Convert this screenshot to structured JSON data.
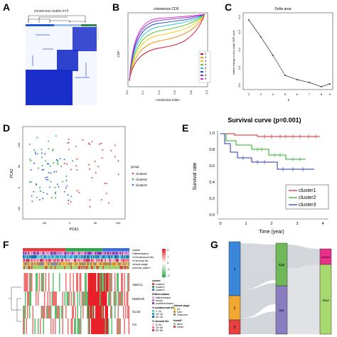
{
  "panels": {
    "A": {
      "label": "A",
      "title": "consensus matrix k=3",
      "legend": [
        "1",
        "2",
        "3"
      ],
      "colors": {
        "cluster1": "#1f5ad8",
        "cluster2": "#9fc3e8",
        "cluster3": "#2c8a55",
        "matrix": "#1a2ec9"
      }
    },
    "B": {
      "label": "B",
      "title": "consensus CDF",
      "xlabel": "consensus index",
      "ylabel": "CDF",
      "xticks": [
        "0.0",
        "0.2",
        "0.4",
        "0.6",
        "0.8",
        "1.0"
      ],
      "yticks": [
        "0.0",
        "0.2",
        "0.4",
        "0.6",
        "0.8",
        "1.0"
      ],
      "legend": [
        "2",
        "3",
        "4",
        "5",
        "6",
        "7",
        "8",
        "9"
      ],
      "colors": [
        "#e0001e",
        "#f08a00",
        "#e8d000",
        "#58c32a",
        "#1ec8c8",
        "#1b3bd8",
        "#7a2ad8",
        "#e02ad0"
      ]
    },
    "C": {
      "label": "C",
      "title": "Delta area",
      "xlabel": "k",
      "ylabel": "relative change in area under CDF curve",
      "xticks": [
        "2",
        "3",
        "4",
        "5",
        "6",
        "7",
        "8",
        "9"
      ],
      "yticks": [
        "0.0",
        "0.1",
        "0.2",
        "0.3",
        "0.4"
      ]
    },
    "D": {
      "label": "D",
      "xlabel": "PCA1",
      "ylabel": "PCA2",
      "xticks": [
        "-50",
        "0",
        "50",
        "100"
      ],
      "yticks": [
        "100",
        "50",
        "0",
        "-50"
      ],
      "legend_title": "group",
      "legend": [
        "cluster1",
        "cluster2",
        "cluster3"
      ],
      "colors": [
        "#e04848",
        "#38b84a",
        "#3a6ee0"
      ]
    },
    "E": {
      "label": "E",
      "title": "Survival curve (p=0.001)",
      "xlabel": "Time (year)",
      "ylabel": "Survival rate",
      "xticks": [
        "0",
        "1",
        "2",
        "3",
        "4"
      ],
      "yticks": [
        "0.0",
        "0.2",
        "0.4",
        "0.6",
        "0.8",
        "1.0"
      ],
      "legend": [
        "cluster1",
        "cluster2",
        "cluster3"
      ],
      "colors": [
        "#e02020",
        "#20b020",
        "#2030c8"
      ]
    },
    "F": {
      "label": "F",
      "rows": [
        "ABCC1",
        "HMGCR",
        "GLS2",
        "CS"
      ],
      "annotations": [
        "cluster",
        "Differentiation",
        "% intratumoral tils",
        "% stromal tils",
        "clinical stage",
        "survival_state**"
      ],
      "legend_scale": [
        "2",
        "1",
        "0",
        "-1",
        "-2"
      ],
      "legend_cluster_title": "cluster",
      "legend_cluster": [
        "cluster1",
        "cluster2",
        "cluster3"
      ],
      "legend_diff_title": "Differentiation",
      "legend_diff": [
        "differentiated",
        "mixed",
        "undifferentiated"
      ],
      "legend_intra_title": "% intratumoral tils",
      "legend_intra": [
        "1~10",
        "10~20",
        "20~30"
      ],
      "legend_stromal_title": "% stromal tils",
      "legend_stromal": [
        "0~20",
        "20~50",
        "50~80"
      ],
      "legend_stage_title": "clinical stage",
      "legend_stage": [
        "I/II",
        "III/IV",
        "Unknown"
      ],
      "legend_fustat_title": "fustat**",
      "legend_fustat": [
        "Alive",
        "Dead"
      ]
    },
    "G": {
      "label": "G",
      "left": [
        "1",
        "2",
        "3"
      ],
      "mid": [
        "high",
        "low"
      ],
      "right": [
        "1Dead",
        "Alive"
      ]
    }
  }
}
